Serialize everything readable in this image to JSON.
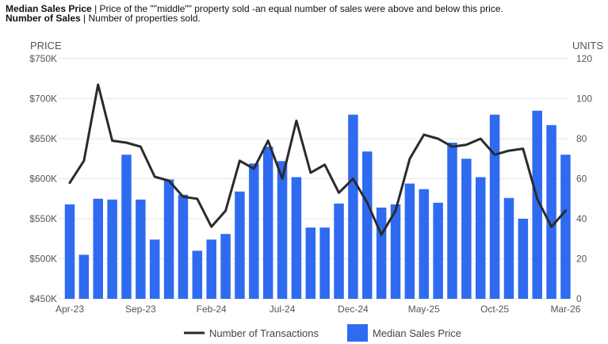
{
  "header": {
    "line1_bold": "Median Sales Price",
    "line1_rest": " | Price of the \"\"middle\"\" property sold -an equal number of sales were above and below this price.",
    "line2_bold": "Number of Sales",
    "line2_rest": " | Number of properties sold."
  },
  "colors": {
    "bar": "#2f6bf0",
    "line": "#2b2b2b"
  },
  "chart_data": {
    "type": "bar+line",
    "y_left": {
      "title": "PRICE",
      "ticks": [
        "$750K",
        "$700K",
        "$650K",
        "$600K",
        "$550K",
        "$500K",
        "$450K"
      ],
      "range": [
        450,
        750
      ]
    },
    "y_right": {
      "title": "UNITS",
      "ticks": [
        "120",
        "100",
        "80",
        "60",
        "40",
        "20",
        "0"
      ],
      "range": [
        0,
        120
      ]
    },
    "x_ticks": [
      {
        "label": "Apr-23",
        "index": 0
      },
      {
        "label": "Sep-23",
        "index": 5
      },
      {
        "label": "Feb-24",
        "index": 10
      },
      {
        "label": "Jul-24",
        "index": 15
      },
      {
        "label": "Dec-24",
        "index": 20
      },
      {
        "label": "May-25",
        "index": 25
      },
      {
        "label": "Oct-25",
        "index": 30
      },
      {
        "label": "Mar-26",
        "index": 35
      }
    ],
    "series": [
      {
        "name": "Median Sales Price",
        "kind": "bar",
        "values": [
          568,
          505,
          575,
          574,
          630,
          574,
          524,
          599,
          580,
          510,
          524,
          531,
          584,
          619,
          640,
          622,
          602,
          539,
          539,
          569,
          680,
          634,
          564,
          568,
          594,
          587,
          570,
          645,
          625,
          602,
          680,
          576,
          550,
          685,
          667,
          630
        ]
      },
      {
        "name": "Number of Transactions",
        "kind": "line",
        "values": [
          58,
          69,
          107,
          79,
          78,
          76,
          61,
          59,
          51,
          50,
          36,
          44,
          69,
          65,
          79,
          60,
          89,
          63,
          67,
          53,
          60,
          48,
          32,
          44,
          70,
          82,
          80,
          76,
          77,
          80,
          72,
          74,
          75,
          50,
          36,
          44
        ]
      }
    ],
    "legend": [
      "Number of Transactions",
      "Median Sales Price"
    ],
    "legend_position": "bottom"
  }
}
